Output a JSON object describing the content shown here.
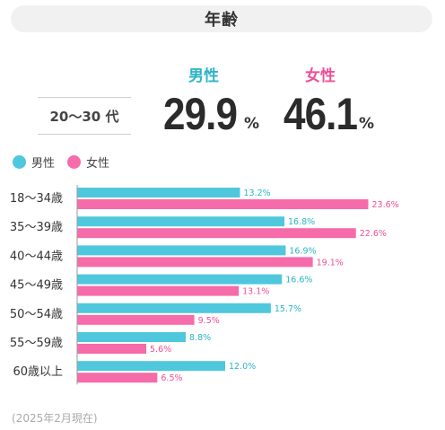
{
  "header": {
    "title": "年齢"
  },
  "summary": {
    "age_band": "20〜30 代",
    "male_label": "男性",
    "female_label": "女性",
    "male_value": "29.9",
    "female_value": "46.1",
    "unit": "%"
  },
  "legend": {
    "male": "男性",
    "female": "女性"
  },
  "colors": {
    "male": "#4fc7dd",
    "female": "#f66ba9",
    "male_text": "#2ab4c8",
    "female_text": "#ee4f97"
  },
  "chart_data": {
    "type": "bar",
    "orientation": "horizontal",
    "categories": [
      "18〜34歳",
      "35〜39歳",
      "40〜44歳",
      "45〜49歳",
      "50〜54歳",
      "55〜59歳",
      "60歳以上"
    ],
    "series": [
      {
        "name": "男性",
        "values": [
          13.2,
          16.8,
          16.9,
          16.6,
          15.7,
          8.8,
          12.0
        ],
        "labels": [
          "13.2%",
          "16.8%",
          "16.9%",
          "16.6%",
          "15.7%",
          "8.8%",
          "12.0%"
        ]
      },
      {
        "name": "女性",
        "values": [
          23.6,
          22.6,
          19.1,
          13.1,
          9.5,
          5.6,
          6.5
        ],
        "labels": [
          "23.6%",
          "22.6%",
          "19.1%",
          "13.1%",
          "9.5%",
          "5.6%",
          "6.5%"
        ]
      }
    ],
    "xlim": [
      0,
      25
    ],
    "grid": false,
    "legend_position": "top-left"
  },
  "footnote": "(2025年2月現在)"
}
